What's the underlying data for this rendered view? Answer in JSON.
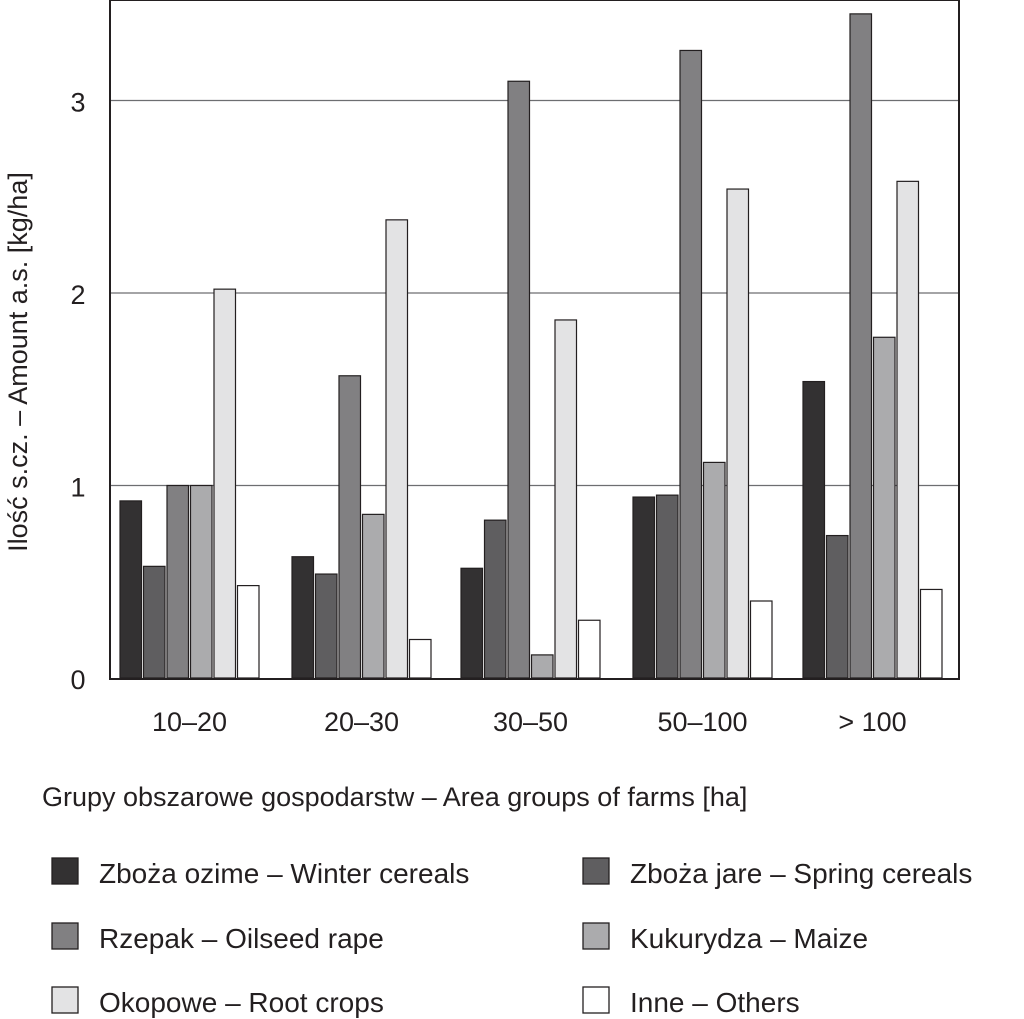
{
  "chart_data": {
    "type": "bar",
    "xlabel": "Grupy obszarowe gospodarstw – Area groups of farms [ha]",
    "ylabel": "Ilość s.cz. – Amount a.s. [kg/ha]",
    "ylim": [
      0,
      3.5
    ],
    "yticks": [
      "0",
      "1",
      "2",
      "3"
    ],
    "grid": true,
    "legend_position": "bottom",
    "categories": [
      "10–20",
      "20–30",
      "30–50",
      "50–100",
      "> 100"
    ],
    "series": [
      {
        "name": "Zboża ozime – Winter cereals",
        "color": "#333132",
        "values": [
          0.92,
          0.63,
          0.57,
          0.94,
          1.54
        ]
      },
      {
        "name": "Zboża jare – Spring cereals",
        "color": "#5f5e60",
        "values": [
          0.58,
          0.54,
          0.82,
          0.95,
          0.74
        ]
      },
      {
        "name": "Rzepak – Oilseed rape",
        "color": "#818082",
        "values": [
          1.0,
          1.57,
          3.1,
          3.26,
          3.45
        ]
      },
      {
        "name": "Kukurydza – Maize",
        "color": "#ababad",
        "values": [
          1.0,
          0.85,
          0.12,
          1.12,
          1.77
        ]
      },
      {
        "name": "Okopowe – Root crops",
        "color": "#e3e3e4",
        "values": [
          2.02,
          2.38,
          1.86,
          2.54,
          2.58
        ]
      },
      {
        "name": "Inne – Others",
        "color": "#ffffff",
        "values": [
          0.48,
          0.2,
          0.3,
          0.4,
          0.46
        ]
      }
    ]
  }
}
